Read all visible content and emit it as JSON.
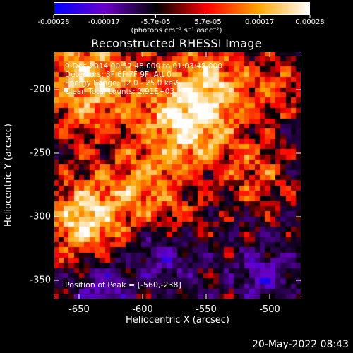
{
  "colorbar": {
    "tick_labels": [
      "-0.00028",
      "-0.00017",
      "-5.7e-05",
      "5.7e-05",
      "0.00017",
      "0.00028"
    ],
    "tick_values": [
      -0.00028,
      -0.00017,
      -5.7e-05,
      5.7e-05,
      0.00017,
      0.00028
    ],
    "units": "(photons cm⁻² s⁻¹ asec⁻²)",
    "colors": [
      "#0000ff",
      "#6a00c8",
      "#000000",
      "#ff0000",
      "#ffa500",
      "#ffffff"
    ]
  },
  "title": "Reconstructed RHESSI Image",
  "annotations": {
    "time_range": "9-Dec-2014 00:57:48.000 to 01:03:48.000",
    "detectors": "Detectors: 3F 6F 7F 9F, Att 0",
    "energy": "Energy Range: 12.0 - 25.0 keV",
    "algorithm": "Clean    Total counts: 2.91E+03",
    "peak": "Position of Peak = [-560,-238]"
  },
  "axes": {
    "xlabel": "Heliocentric X (arcsec)",
    "ylabel": "Heliocentric Y (arcsec)",
    "x_ticks": [
      "-650",
      "-600",
      "-550",
      "-500"
    ],
    "x_tick_values": [
      -650,
      -600,
      -550,
      -500
    ],
    "y_ticks": [
      "-200",
      "-250",
      "-300",
      "-350"
    ],
    "y_tick_values": [
      -200,
      -250,
      -300,
      -350
    ],
    "xlim": [
      -670,
      -475
    ],
    "ylim": [
      -365,
      -170
    ]
  },
  "timestamp": "20-May-2022 08:43",
  "chart_data": {
    "type": "heatmap",
    "title": "Reconstructed RHESSI Image",
    "xlabel": "Heliocentric X (arcsec)",
    "ylabel": "Heliocentric Y (arcsec)",
    "xlim": [
      -670,
      -475
    ],
    "ylim": [
      -365,
      -170
    ],
    "zlim": [
      -0.00028,
      0.00028
    ],
    "peak": [
      -560,
      -238
    ]
  }
}
